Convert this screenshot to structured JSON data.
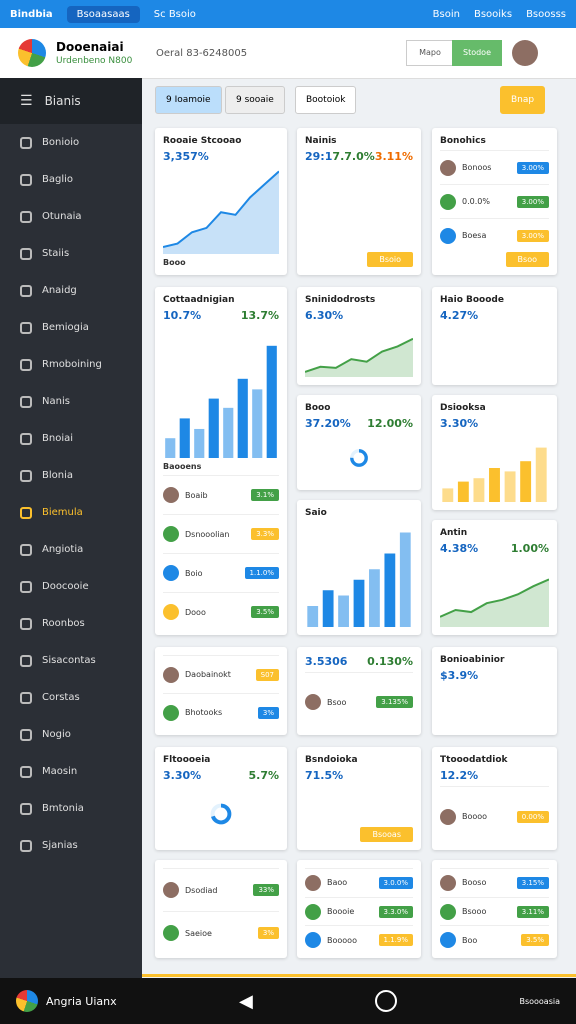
{
  "topbar": {
    "app": "Bindbia",
    "search": "Bsoaasaas",
    "items": [
      "Sc Bsoio",
      "Bsoin",
      "Bsooiks",
      "Bsoosss"
    ]
  },
  "header": {
    "title": "Dooenaiai",
    "subtitle": "Urdenbeno N800",
    "info": "Oeral 83-6248005",
    "buttons": [
      "Mapo",
      "Stodoe"
    ]
  },
  "sidebar": {
    "title": "Bianis",
    "items": [
      "Bonioio",
      "Baglio",
      "Otunaia",
      "Staiis",
      "Anaidg",
      "Bemiogia",
      "Rmoboining",
      "Nanis",
      "Bnoiai",
      "Blonia",
      "Biemula",
      "Angiotia",
      "Doocooie",
      "Roonbos",
      "Sisacontas",
      "Corstas",
      "Nogio",
      "Maosin",
      "Bmtonia",
      "Sjanias"
    ],
    "active": 10
  },
  "toolbar": {
    "filters": [
      "9 Ioamoie",
      "9 sooaie",
      "Bootoiok"
    ],
    "action": "Bnap"
  },
  "columns": [
    [
      {
        "title": "Rooaie Stcooao",
        "stats": [
          "3,357%"
        ],
        "chart": {
          "type": "area",
          "values": [
            8,
            12,
            25,
            30,
            48,
            45,
            65,
            80,
            95
          ],
          "ylim": [
            0,
            100
          ],
          "color": "#1e88e5"
        },
        "note": "Booo"
      },
      {
        "title": "Cottaadnigian",
        "stats": [
          "10.7%",
          "13.7%"
        ],
        "chart": {
          "type": "bar",
          "values": [
            15,
            30,
            22,
            45,
            38,
            60,
            52,
            85
          ],
          "ylim": [
            0,
            100
          ],
          "color": "#1e88e5"
        },
        "note": "Baooens",
        "rows": [
          {
            "label": "Boaib",
            "value": "3.1%"
          },
          {
            "label": "Dsnooolian",
            "value": "3.3%"
          },
          {
            "label": "Boio",
            "value": "1.1.0%"
          },
          {
            "label": "Dooo",
            "value": "3.5%"
          }
        ]
      },
      {
        "rows": [
          {
            "label": "Daobainokt",
            "value": "S07"
          },
          {
            "label": "Bhotooks",
            "value": "3%"
          }
        ]
      },
      {
        "title": "Fltoooeia",
        "stats": [
          "3.30%",
          "5.7%"
        ],
        "chart": {
          "type": "donut",
          "values": [
            70
          ],
          "ylim": [
            0,
            100
          ],
          "color": "#1e88e5"
        }
      },
      {
        "rows": [
          {
            "label": "Dsodiad",
            "value": "33%"
          },
          {
            "label": "Saeioe",
            "value": "3%"
          }
        ]
      }
    ],
    [
      {
        "title": "Nainis",
        "stats": [
          "29:1",
          "7.7.0%",
          "3.11%"
        ],
        "button": "Bsoio"
      },
      {
        "title": "Sninidodrosts",
        "stats": [
          "6.30%"
        ],
        "chart": {
          "type": "area",
          "values": [
            10,
            20,
            18,
            35,
            30,
            50,
            60,
            75
          ],
          "ylim": [
            0,
            100
          ],
          "color": "#43a047"
        }
      },
      {
        "title": "Booo",
        "stats": [
          "37.20%",
          "12.00%"
        ],
        "chart": {
          "type": "donut",
          "values": [
            75
          ],
          "ylim": [
            0,
            100
          ],
          "color": "#1e88e5"
        }
      },
      {
        "title": "Saio",
        "chart": {
          "type": "bar",
          "values": [
            20,
            35,
            30,
            45,
            55,
            70,
            90
          ],
          "ylim": [
            0,
            100
          ],
          "color": "#1e88e5"
        }
      },
      {
        "stats": [
          "3.5306",
          "0.130%"
        ],
        "rows": [
          {
            "label": "Bsoo",
            "value": "3.135%"
          }
        ]
      },
      {
        "title": "Bsndoioka",
        "stats": [
          "71.5%"
        ],
        "button": "Bsooas"
      },
      {
        "rows": [
          {
            "label": "Baoo",
            "value": "3.0.0%"
          },
          {
            "label": "Boooie",
            "value": "3.3.0%"
          },
          {
            "label": "Booooo",
            "value": "1.1.9%"
          }
        ]
      }
    ],
    [
      {
        "title": "Bonohics",
        "rows": [
          {
            "label": "Bonoos",
            "value": "3.00%"
          },
          {
            "label": "0.0.0%",
            "value": "3.00%"
          },
          {
            "label": "Boesa",
            "value": "3.00%"
          }
        ],
        "button": "Bsoo"
      },
      {
        "title": "Haio Booode",
        "stats": [
          "4.27%"
        ]
      },
      {
        "title": "Dsiooksa",
        "stats": [
          "3.30%"
        ],
        "chart": {
          "type": "bar",
          "values": [
            20,
            30,
            35,
            50,
            45,
            60,
            80
          ],
          "ylim": [
            0,
            100
          ],
          "color": "#fbc02d"
        }
      },
      {
        "title": "Antin",
        "stats": [
          "4.38%",
          "1.00%"
        ],
        "chart": {
          "type": "area",
          "values": [
            15,
            25,
            22,
            35,
            40,
            48,
            60,
            70
          ],
          "ylim": [
            0,
            100
          ],
          "color": "#43a047"
        }
      },
      {
        "title": "Bonioabinior",
        "stats": [
          "$3.9%"
        ]
      },
      {
        "title": "Ttooodatdiok",
        "stats": [
          "12.2%"
        ],
        "rows": [
          {
            "label": "Boooo",
            "value": "0.00%"
          }
        ]
      },
      {
        "rows": [
          {
            "label": "Booso",
            "value": "3.15%"
          },
          {
            "label": "Bsooo",
            "value": "3.11%"
          },
          {
            "label": "Boo",
            "value": "3.5%"
          }
        ]
      }
    ]
  ],
  "footer": {
    "label": "Angria Uianx",
    "status": "Bsoooasia"
  }
}
